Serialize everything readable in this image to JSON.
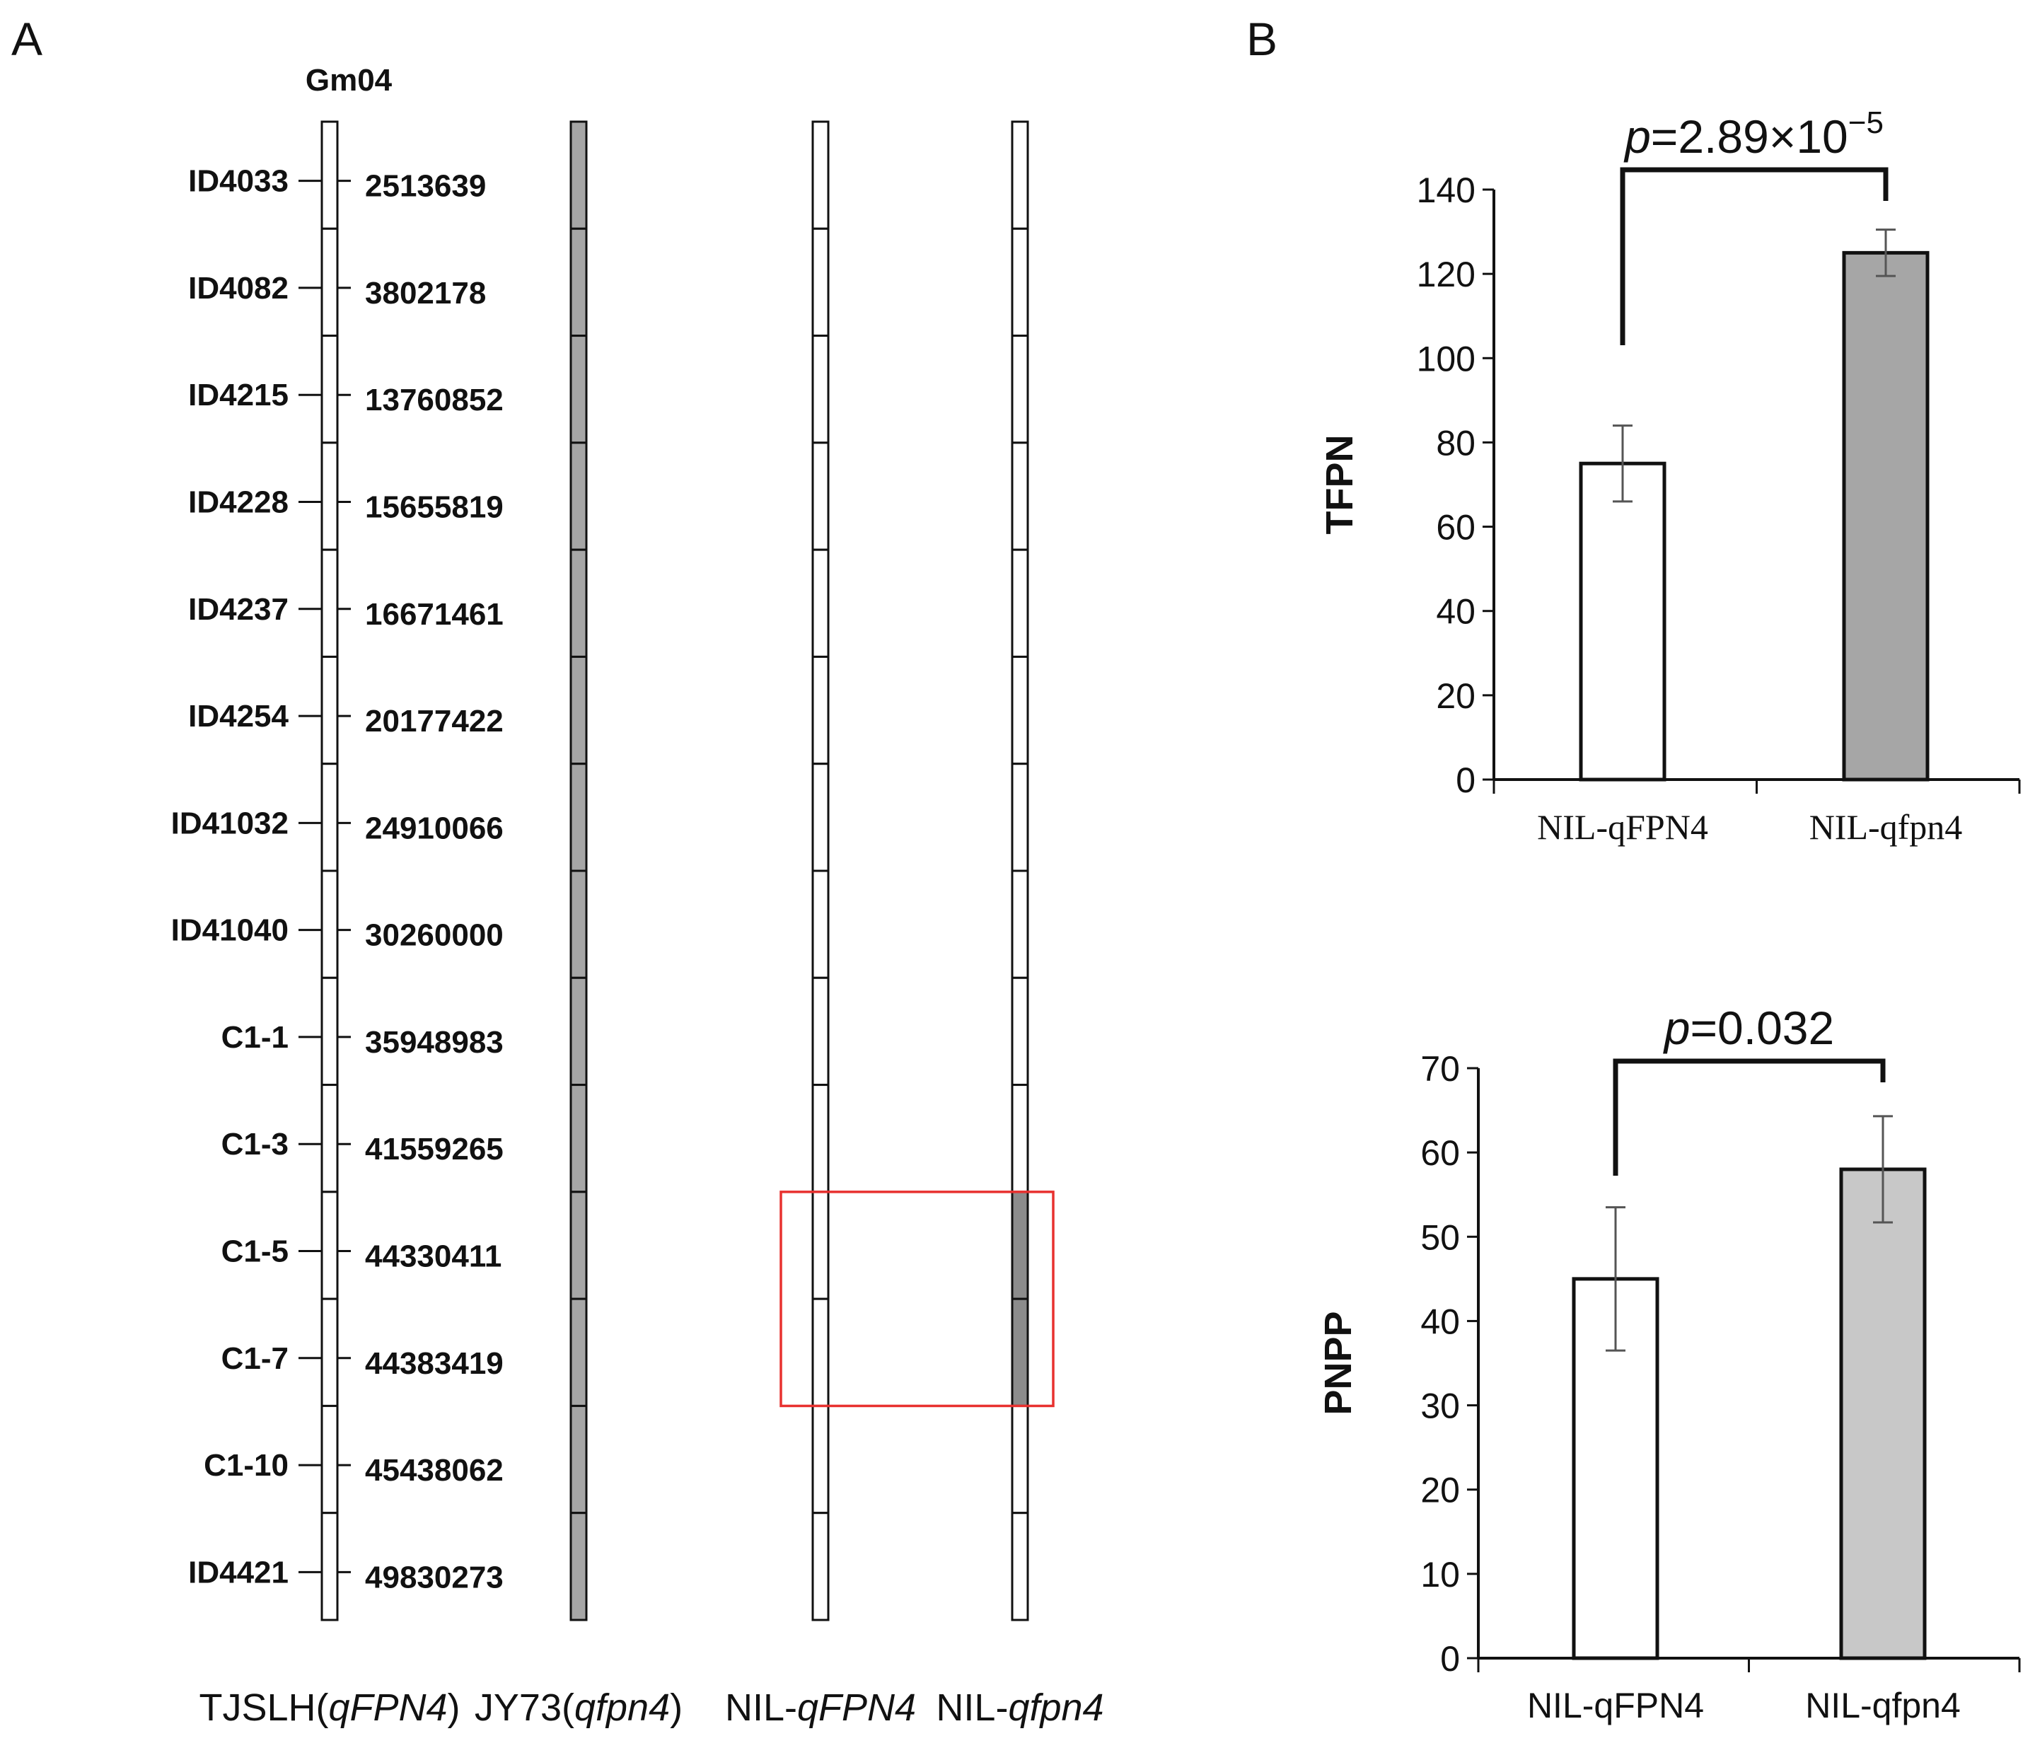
{
  "panel_labels": {
    "a": "A",
    "b": "B"
  },
  "chart_data": [
    {
      "type": "genetic-map",
      "chromosome": "Gm04",
      "markers": [
        "ID4033",
        "ID4082",
        "ID4215",
        "ID4228",
        "ID4237",
        "ID4254",
        "ID41032",
        "ID41040",
        "C1-1",
        "C1-3",
        "C1-5",
        "C1-7",
        "C1-10",
        "ID4421"
      ],
      "positions": [
        "2513639",
        "3802178",
        "13760852",
        "15655819",
        "16671461",
        "20177422",
        "24910066",
        "30260000",
        "35948983",
        "41559265",
        "44330411",
        "44383419",
        "45438062",
        "49830273"
      ],
      "genotypes": [
        {
          "prefix": "TJSLH(",
          "italic": "qFPN4",
          "suffix": ")",
          "filled_segments": [],
          "fill": "#ffffff"
        },
        {
          "prefix": "JY73(",
          "italic": "qfpn4",
          "suffix": ")",
          "filled_segments": [
            0,
            1,
            2,
            3,
            4,
            5,
            6,
            7,
            8,
            9,
            10,
            11,
            12,
            13
          ],
          "fill": "#a6a6a6"
        },
        {
          "prefix": "NIL-",
          "italic": "qFPN4",
          "suffix": "",
          "filled_segments": [],
          "fill": "#ffffff"
        },
        {
          "prefix": "NIL-",
          "italic": "qfpn4",
          "suffix": "",
          "filled_segments": [
            10,
            11
          ],
          "fill": "#8c8c8c"
        }
      ],
      "highlight": {
        "from_segment": 10,
        "to_segment": 11,
        "color": "#e8312f"
      }
    },
    {
      "type": "bar",
      "title": "",
      "ylabel": "TFPN",
      "xlabel": "",
      "categories": [
        "NIL-qFPN4",
        "NIL-qfpn4"
      ],
      "values": [
        75,
        125
      ],
      "errors": [
        9,
        5.5
      ],
      "colors": [
        "#ffffff",
        "#a6a6a6"
      ],
      "ylim": [
        0,
        140
      ],
      "yticks": [
        0,
        20,
        40,
        60,
        80,
        100,
        120,
        140
      ],
      "annotation": {
        "prefix": "p",
        "text": "=2.89×10",
        "superscript": "−5"
      }
    },
    {
      "type": "bar",
      "title": "",
      "ylabel": "PNPP",
      "xlabel": "",
      "categories": [
        "NIL-qFPN4",
        "NIL-qfpn4"
      ],
      "values": [
        45,
        58
      ],
      "errors": [
        8.5,
        6.3
      ],
      "colors": [
        "#ffffff",
        "#c8c8c8"
      ],
      "ylim": [
        0,
        70
      ],
      "yticks": [
        0,
        10,
        20,
        30,
        40,
        50,
        60,
        70
      ],
      "annotation": {
        "prefix": "p",
        "text": "=0.032",
        "superscript": ""
      }
    }
  ]
}
